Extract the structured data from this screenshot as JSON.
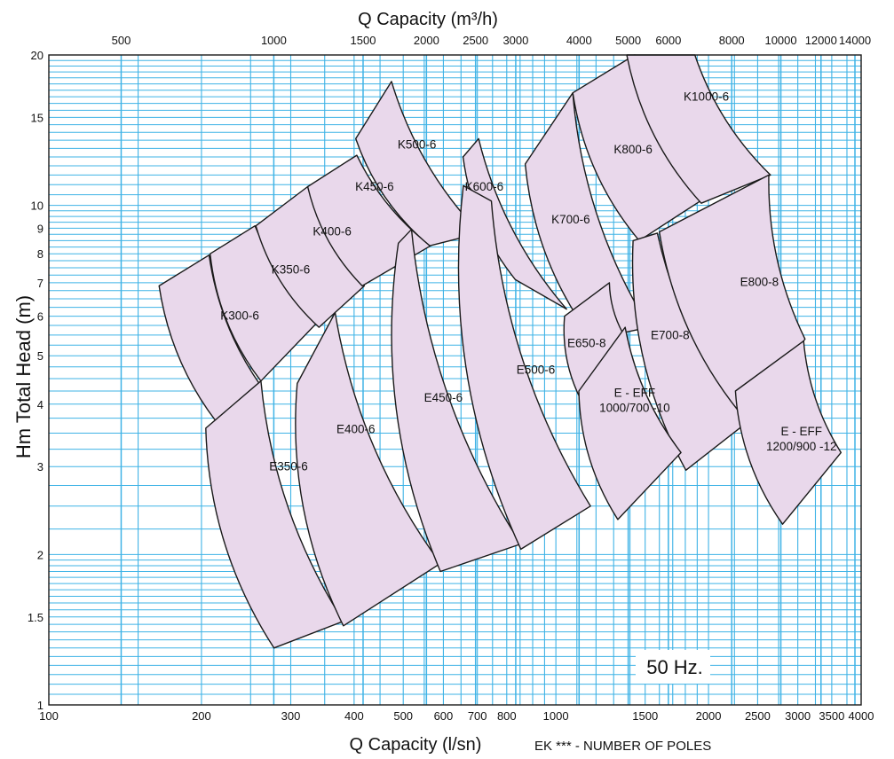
{
  "chart_data": {
    "type": "area",
    "title_top": "Q Capacity (m³/h)",
    "xlabel_bottom": "Q Capacity (l/sn)",
    "ylabel": "Hm Total Head (m)",
    "note": "EK *** - NUMBER OF POLES",
    "frequency_label": "50 Hz.",
    "x_scale": "log",
    "y_scale": "log",
    "xlim": [
      100,
      4000
    ],
    "ylim": [
      1,
      20
    ],
    "grid": true,
    "x_ticks_bottom": [
      "100",
      "200",
      "300",
      "400",
      "500",
      "600",
      "700",
      "800",
      "1000",
      "1500",
      "2000",
      "2500",
      "3000",
      "3500",
      "4000"
    ],
    "x_tick_values_bottom": [
      100,
      200,
      300,
      400,
      500,
      600,
      700,
      800,
      1000,
      1500,
      2000,
      2500,
      3000,
      3500,
      4000
    ],
    "x_ticks_top": [
      "500",
      "1000",
      "1500",
      "2000",
      "2500",
      "3000",
      "4000",
      "5000",
      "6000",
      "8000",
      "10000",
      "12000",
      "14000"
    ],
    "x_tick_values_top_m3h": [
      500,
      1000,
      1500,
      2000,
      2500,
      3000,
      4000,
      5000,
      6000,
      8000,
      10000,
      12000,
      14000
    ],
    "y_ticks": [
      "1",
      "1.5",
      "2",
      "3",
      "4",
      "5",
      "6",
      "7",
      "8",
      "9",
      "10",
      "15",
      "20"
    ],
    "y_tick_values": [
      1,
      1.5,
      2,
      3,
      4,
      5,
      6,
      7,
      8,
      9,
      10,
      15,
      20
    ],
    "colors": {
      "region_fill": "#e9d8eb",
      "grid": "#3fb3e6",
      "outline": "#1a1a1a"
    },
    "series": [
      {
        "name": "K300-6",
        "label_at": [
          238,
          5.9
        ],
        "corners": {
          "ll": [
            222,
            3.52
          ],
          "ul": [
            165,
            6.9
          ],
          "ur": [
            207,
            7.95
          ],
          "lr": [
            262,
            4.35
          ]
        }
      },
      {
        "name": "K350-6",
        "label_at": [
          300,
          7.3
        ],
        "corners": {
          "ll": [
            262,
            4.45
          ],
          "ul": [
            208,
            8.0
          ],
          "ur": [
            255,
            9.1
          ],
          "lr": [
            345,
            5.95
          ]
        }
      },
      {
        "name": "K400-6",
        "label_at": [
          362,
          8.7
        ],
        "corners": {
          "ll": [
            341,
            5.7
          ],
          "ul": [
            256,
            9.1
          ],
          "ur": [
            324,
            10.9
          ],
          "lr": [
            419,
            6.9
          ]
        }
      },
      {
        "name": "K450-6",
        "label_at": [
          439,
          10.7
        ],
        "corners": {
          "ll": [
            415,
            6.9
          ],
          "ul": [
            324,
            10.9
          ],
          "ur": [
            405,
            12.6
          ],
          "lr": [
            566,
            8.3
          ]
        }
      },
      {
        "name": "K500-6",
        "label_at": [
          532,
          13.0
        ],
        "corners": {
          "ll": [
            564,
            8.3
          ],
          "ul": [
            403,
            13.6
          ],
          "ur": [
            474,
            17.7
          ],
          "lr": [
            708,
            8.8
          ]
        }
      },
      {
        "name": "K600-6",
        "label_at": [
          722,
          10.7
        ],
        "corners": {
          "ll": [
            832,
            7.1
          ],
          "ul": [
            656,
            12.5
          ],
          "ur": [
            704,
            13.6
          ],
          "lr": [
            1050,
            6.2
          ]
        }
      },
      {
        "name": "K700-6",
        "label_at": [
          1070,
          9.2
        ],
        "corners": {
          "ll": [
            1180,
            5.4
          ],
          "ul": [
            870,
            12.1
          ],
          "ur": [
            1080,
            16.8
          ],
          "lr": [
            1528,
            5.7
          ]
        }
      },
      {
        "name": "K800-6",
        "label_at": [
          1420,
          12.7
        ],
        "corners": {
          "ll": [
            1460,
            8.5
          ],
          "ul": [
            1080,
            16.8
          ],
          "ur": [
            1430,
            20.0
          ],
          "lr": [
            1955,
            10.3
          ]
        }
      },
      {
        "name": "K1000-6",
        "label_at": [
          1980,
          16.2
        ],
        "corners": {
          "ll": [
            1935,
            10.1
          ],
          "ul": [
            1380,
            20.0
          ],
          "ur": [
            1880,
            20.0
          ],
          "lr": [
            2650,
            11.5
          ]
        }
      },
      {
        "name": "E350-6",
        "label_at": [
          297,
          2.95
        ],
        "corners": {
          "ll": [
            278,
            1.3
          ],
          "ul": [
            204,
            3.58
          ],
          "ur": [
            262,
            4.45
          ],
          "lr": [
            381,
            1.47
          ]
        }
      },
      {
        "name": "E400-6",
        "label_at": [
          403,
          3.5
        ],
        "corners": {
          "ll": [
            381,
            1.44
          ],
          "ul": [
            309,
            4.4
          ],
          "ur": [
            367,
            6.1
          ],
          "lr": [
            592,
            1.92
          ]
        }
      },
      {
        "name": "E450-6",
        "label_at": [
          600,
          4.05
        ],
        "corners": {
          "ll": [
            592,
            1.85
          ],
          "ul": [
            489,
            8.4
          ],
          "ur": [
            519,
            8.95
          ],
          "lr": [
            853,
            2.1
          ]
        }
      },
      {
        "name": "E500-6",
        "label_at": [
          913,
          4.6
        ],
        "corners": {
          "ll": [
            853,
            2.05
          ],
          "ul": [
            657,
            10.95
          ],
          "ur": [
            746,
            10.2
          ],
          "lr": [
            1170,
            2.5
          ]
        }
      },
      {
        "name": "E650-8",
        "label_at": [
          1150,
          5.2
        ],
        "corners": {
          "ll": [
            1118,
            4.1
          ],
          "ul": [
            1040,
            6.0
          ],
          "ur": [
            1275,
            7.0
          ],
          "lr": [
            1355,
            5.55
          ]
        }
      },
      {
        "name": "E700-8",
        "label_at": [
          1680,
          5.4
        ],
        "corners": {
          "ll": [
            1805,
            2.95
          ],
          "ul": [
            1420,
            8.5
          ],
          "ur": [
            1585,
            8.8
          ],
          "lr": [
            2400,
            3.7
          ]
        }
      },
      {
        "name": "E800-8",
        "label_at": [
          2520,
          6.9
        ],
        "corners": {
          "ll": [
            2380,
            3.7
          ],
          "ul": [
            1600,
            8.85
          ],
          "ur": [
            2630,
            11.5
          ],
          "lr": [
            3100,
            5.4
          ]
        }
      },
      {
        "name": "E - EFF 1000/700 -10",
        "label_at": [
          1430,
          4.0
        ],
        "corners": {
          "ll": [
            1325,
            2.35
          ],
          "ul": [
            1110,
            4.25
          ],
          "ur": [
            1370,
            5.7
          ],
          "lr": [
            1765,
            3.2
          ]
        }
      },
      {
        "name": "E - EFF 1200/900 -12",
        "label_at": [
          3050,
          3.35
        ],
        "corners": {
          "ll": [
            2800,
            2.3
          ],
          "ul": [
            2260,
            4.25
          ],
          "ur": [
            3080,
            5.35
          ],
          "lr": [
            3650,
            3.2
          ]
        }
      }
    ]
  }
}
